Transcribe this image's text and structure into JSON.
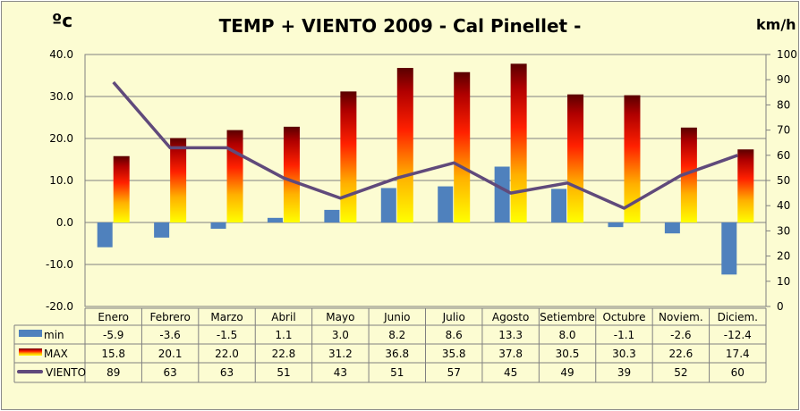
{
  "chart_data": {
    "type": "bar+line",
    "title": "TEMP + VIENTO 2009 - Cal Pinellet -",
    "ylabel_left": "ºc",
    "ylabel_right": "km/h",
    "ylim_left": [
      -20,
      40
    ],
    "ylim_right": [
      0,
      100
    ],
    "yticks_left": [
      "40.0",
      "30.0",
      "20.0",
      "10.0",
      "0.0",
      "-10.0",
      "-20.0"
    ],
    "yticks_right": [
      "100",
      "90",
      "80",
      "70",
      "60",
      "50",
      "40",
      "30",
      "20",
      "10",
      "0"
    ],
    "grid": true,
    "legend": "data-table",
    "categories": [
      "Enero",
      "Febrero",
      "Marzo",
      "Abril",
      "Mayo",
      "Junio",
      "Julio",
      "Agosto",
      "Setiembre",
      "Octubre",
      "Noviem.",
      "Diciem."
    ],
    "series": [
      {
        "name": "min",
        "type": "bar",
        "axis": "left",
        "color": "#4f81bd",
        "values": [
          -5.9,
          -3.6,
          -1.5,
          1.1,
          3.0,
          8.2,
          8.6,
          13.3,
          8.0,
          -1.1,
          -2.6,
          -12.4
        ],
        "labels": [
          "-5.9",
          "-3.6",
          "-1.5",
          "1.1",
          "3.0",
          "8.2",
          "8.6",
          "13.3",
          "8.0",
          "-1.1",
          "-2.6",
          "-12.4"
        ]
      },
      {
        "name": "MAX",
        "type": "bar",
        "axis": "left",
        "color": "gradient yellow-red",
        "values": [
          15.8,
          20.1,
          22.0,
          22.8,
          31.2,
          36.8,
          35.8,
          37.8,
          30.5,
          30.3,
          22.6,
          17.4
        ],
        "labels": [
          "15.8",
          "20.1",
          "22.0",
          "22.8",
          "31.2",
          "36.8",
          "35.8",
          "37.8",
          "30.5",
          "30.3",
          "22.6",
          "17.4"
        ]
      },
      {
        "name": "VIENTO",
        "type": "line",
        "axis": "right",
        "color": "#604a7b",
        "values": [
          89,
          63,
          63,
          51,
          43,
          51,
          57,
          45,
          49,
          39,
          52,
          60
        ],
        "labels": [
          "89",
          "63",
          "63",
          "51",
          "43",
          "51",
          "57",
          "45",
          "49",
          "39",
          "52",
          "60"
        ]
      }
    ]
  }
}
